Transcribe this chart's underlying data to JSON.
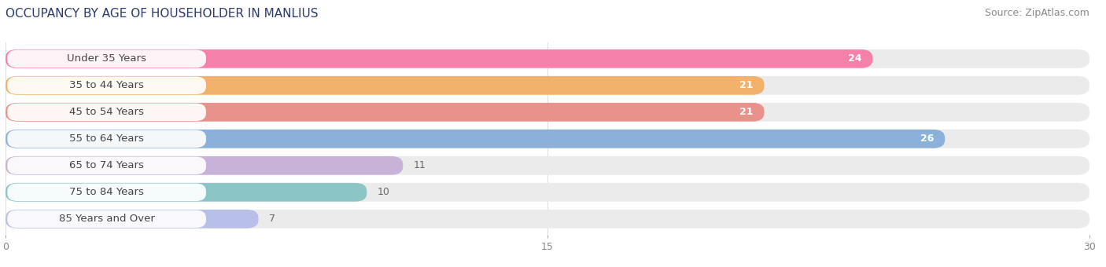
{
  "title": "OCCUPANCY BY AGE OF HOUSEHOLDER IN MANLIUS",
  "source": "Source: ZipAtlas.com",
  "categories": [
    "Under 35 Years",
    "35 to 44 Years",
    "45 to 54 Years",
    "55 to 64 Years",
    "65 to 74 Years",
    "75 to 84 Years",
    "85 Years and Over"
  ],
  "values": [
    24,
    21,
    21,
    26,
    11,
    10,
    7
  ],
  "bar_colors": [
    "#F76FA0",
    "#F5A855",
    "#E8837A",
    "#7AA6D8",
    "#C4A8D4",
    "#7ABFBF",
    "#B0B8E8"
  ],
  "bar_bg_color": "#EBEBEB",
  "xlim": [
    0,
    30
  ],
  "xticks": [
    0,
    15,
    30
  ],
  "title_fontsize": 11,
  "source_fontsize": 9,
  "label_fontsize": 9.5,
  "value_fontsize": 9,
  "background_color": "#FFFFFF",
  "label_box_color": "#FFFFFF",
  "title_color": "#2B3A6B",
  "label_text_color": "#444444"
}
